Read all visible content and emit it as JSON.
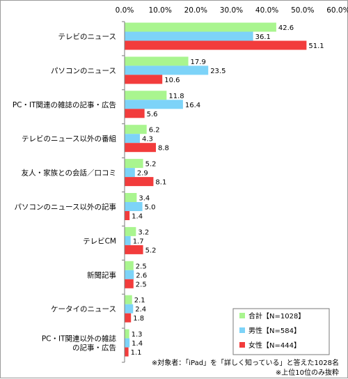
{
  "chart_data": {
    "type": "bar",
    "orientation": "horizontal",
    "categories": [
      "テレビのニュース",
      "パソコンのニュース",
      "PC・IT関連の雑誌の記事・広告",
      "テレビのニュース以外の番組",
      "友人・家族との会話／口コミ",
      "パソコンのニュース以外の記事",
      "テレビCM",
      "新聞記事",
      "ケータイのニュース",
      [
        "PC・IT関連以外の雑誌",
        "の記事・広告"
      ]
    ],
    "series": [
      {
        "name": "合計【N=1028】",
        "color": "#a9f58f",
        "values": [
          42.6,
          17.9,
          11.8,
          6.2,
          5.2,
          3.4,
          3.2,
          2.5,
          2.1,
          1.3
        ]
      },
      {
        "name": "男性【N=584】",
        "color": "#7dd3f8",
        "values": [
          36.1,
          23.5,
          16.4,
          4.3,
          2.9,
          5.0,
          1.7,
          2.6,
          2.4,
          1.4
        ]
      },
      {
        "name": "女性【N=444】",
        "color": "#f23c3c",
        "values": [
          51.1,
          10.6,
          5.6,
          8.8,
          8.1,
          1.4,
          5.2,
          2.5,
          1.8,
          1.1
        ]
      }
    ],
    "xlim": [
      0,
      60
    ],
    "xticks": [
      "0.0%",
      "10.0%",
      "20.0%",
      "30.0%",
      "40.0%",
      "50.0%",
      "60.0%"
    ],
    "legend_position": "bottom-right",
    "grid": false
  },
  "notes": [
    "※対象者：「iPad」を「詳しく知っている」と答えた1028名",
    "※上位10位のみ抜粋"
  ]
}
